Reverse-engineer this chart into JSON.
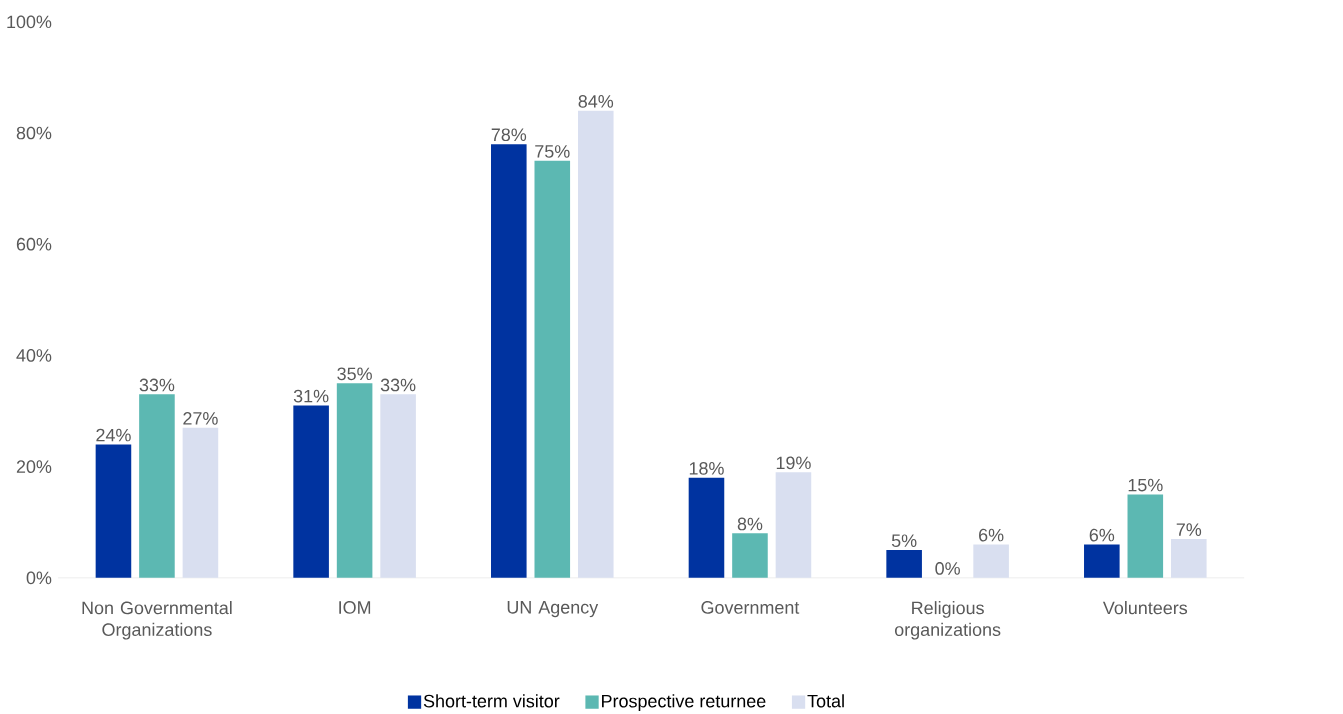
{
  "chart_data": {
    "type": "bar",
    "categories": [
      "Non Governmental Organizations",
      "IOM",
      "UN Agency",
      "Government",
      "Religious organizations",
      "Volunteers"
    ],
    "series": [
      {
        "name": "Short-term visitor",
        "color": "#0033a0",
        "values": [
          24,
          31,
          78,
          18,
          5,
          6
        ],
        "value_labels": [
          "24%",
          "31%",
          "78%",
          "18%",
          "5%",
          "6%"
        ]
      },
      {
        "name": "Prospective returnee",
        "color": "#5cb8b2",
        "values": [
          33,
          35,
          75,
          8,
          0,
          15
        ],
        "value_labels": [
          "33%",
          "35%",
          "75%",
          "8%",
          "0%",
          "15%"
        ]
      },
      {
        "name": "Total",
        "color": "#d9dff0",
        "values": [
          27,
          33,
          84,
          19,
          6,
          7
        ],
        "value_labels": [
          "27%",
          "33%",
          "84%",
          "19%",
          "6%",
          "7%"
        ]
      }
    ],
    "ylim": [
      0,
      100
    ],
    "yticks": [
      {
        "value": 0,
        "label": "0%"
      },
      {
        "value": 20,
        "label": "20%"
      },
      {
        "value": 40,
        "label": "40%"
      },
      {
        "value": 60,
        "label": "60%"
      },
      {
        "value": 80,
        "label": "80%"
      },
      {
        "value": 100,
        "label": "100%"
      }
    ],
    "grid": false,
    "legend": "bottom"
  }
}
